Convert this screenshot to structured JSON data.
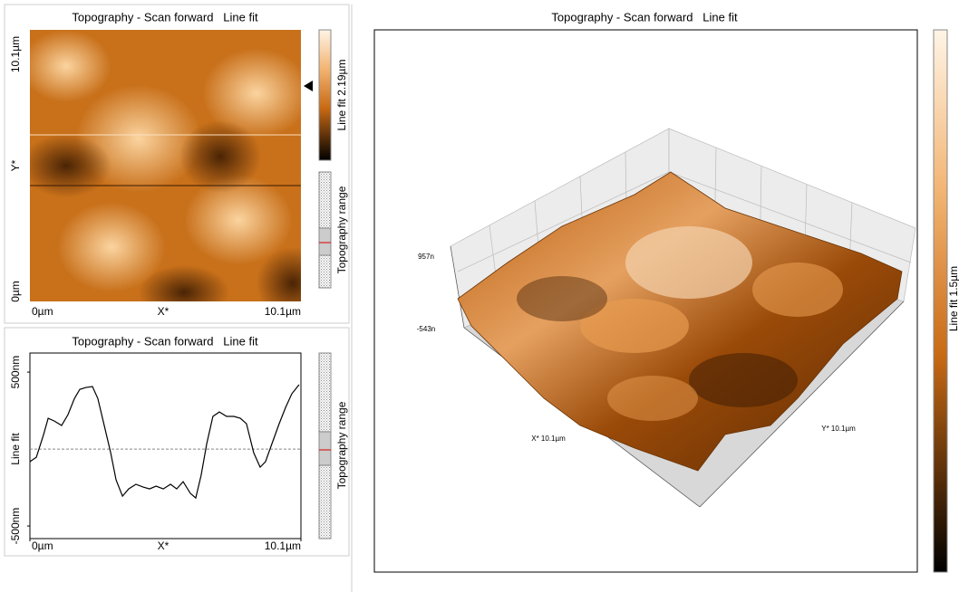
{
  "image_panel": {
    "title": "Topography - Scan forward   Line fit",
    "y_labels": [
      "10.1µm",
      "Y*",
      "0µm"
    ],
    "x_labels": [
      "0µm",
      "X*",
      "10.1µm"
    ],
    "colorbar_label": "Line fit 2.19µm",
    "range_label": "Topography range"
  },
  "chart_data": {
    "type": "line",
    "title": "Topography - Scan forward   Line fit",
    "x_label": "X*",
    "y_label": "Line fit",
    "color": "#000000",
    "x": [
      0,
      0.24,
      0.51,
      0.68,
      0.91,
      1.18,
      1.42,
      1.66,
      1.86,
      2.09,
      2.33,
      2.53,
      2.77,
      3.01,
      3.21,
      3.45,
      3.68,
      3.95,
      4.22,
      4.46,
      4.7,
      4.97,
      5.24,
      5.47,
      5.71,
      5.98,
      6.18,
      6.38,
      6.59,
      6.82,
      7.06,
      7.33,
      7.6,
      7.84,
      8.07,
      8.34,
      8.58,
      8.78,
      9.02,
      9.29,
      9.53,
      9.76,
      10.03
    ],
    "values": [
      -82,
      -53,
      94,
      200,
      182,
      153,
      224,
      329,
      388,
      400,
      406,
      329,
      153,
      -24,
      -200,
      -306,
      -259,
      -229,
      -247,
      -259,
      -241,
      -259,
      -229,
      -259,
      -212,
      -288,
      -318,
      -171,
      35,
      212,
      241,
      212,
      212,
      200,
      165,
      -24,
      -118,
      -82,
      35,
      165,
      271,
      359,
      418
    ],
    "xlim": [
      0,
      10.1
    ],
    "xticks": [
      {
        "value": 0,
        "label": "0µm"
      },
      {
        "value": 10.1,
        "label": "10.1µm"
      }
    ],
    "ylim": [
      -582,
      624
    ],
    "yticks": [
      {
        "value": 500,
        "label": "500nm"
      },
      {
        "value": -500,
        "label": "-500nm"
      }
    ]
  },
  "profile_range_label": "Topography range",
  "surface_panel": {
    "title": "Topography - Scan forward   Line fit",
    "z_labels": [
      "957n",
      "-543n"
    ],
    "x_label": "X* 10.1µm",
    "y_label": "Y* 10.1µm",
    "colorbar_label": "Line fit 1.5µm"
  }
}
